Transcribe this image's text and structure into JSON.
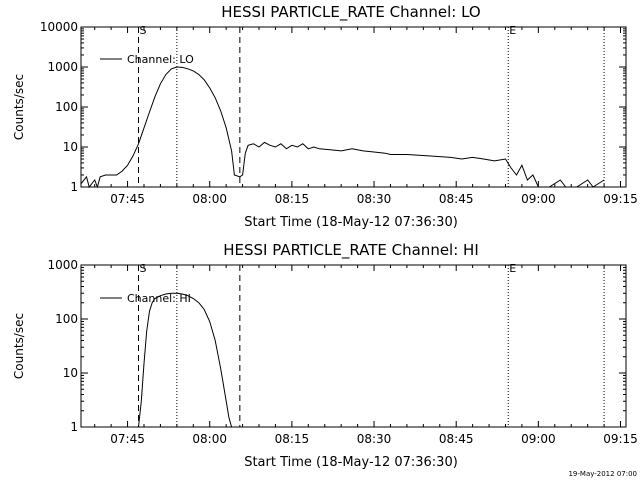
{
  "stamp": "19-May-2012 07:00",
  "chart_data": [
    {
      "type": "line",
      "title": "HESSI PARTICLE_RATE Channel: LO",
      "xlabel": "Start Time (18-May-12 07:36:30)",
      "ylabel": "Counts/sec",
      "yscale": "log",
      "ylim": [
        1,
        10000
      ],
      "xlim": [
        "07:36:30",
        "09:16:00"
      ],
      "xticks": [
        "07:45",
        "08:00",
        "08:15",
        "08:30",
        "08:45",
        "09:00",
        "09:15"
      ],
      "yticks": [
        "1",
        "10",
        "100",
        "1000",
        "10000"
      ],
      "legend": {
        "label": "Channel: LO",
        "placement": "top-left"
      },
      "markers": [
        {
          "label": "S",
          "time": "07:47:00",
          "style": "dashed"
        },
        {
          "label": "",
          "time": "07:54:00",
          "style": "dotted"
        },
        {
          "label": "",
          "time": "08:05:30",
          "style": "dashed"
        },
        {
          "label": "E",
          "time": "08:54:30",
          "style": "dotted"
        },
        {
          "label": "",
          "time": "09:12:00",
          "style": "dotted"
        }
      ],
      "series": [
        {
          "x": [
            "07:36:30",
            "07:37:30",
            "07:38:00",
            "07:39:00",
            "07:39:30",
            "07:40:00",
            "07:41:00",
            "07:42:00",
            "07:43:00",
            "07:44:00",
            "07:45:00",
            "07:46:00",
            "07:47:00",
            "07:48:00",
            "07:49:00",
            "07:50:00",
            "07:51:00",
            "07:52:00",
            "07:53:00",
            "07:54:00",
            "07:55:00",
            "07:56:00",
            "07:57:00",
            "07:58:00",
            "07:59:00",
            "08:00:00",
            "08:01:00",
            "08:02:00",
            "08:03:00",
            "08:04:00",
            "08:04:30",
            "08:05:30",
            "08:06:00",
            "08:06:30",
            "08:07:00",
            "08:08:00",
            "08:09:00",
            "08:10:00",
            "08:11:00",
            "08:12:00",
            "08:13:00",
            "08:14:00",
            "08:15:00",
            "08:16:00",
            "08:17:00",
            "08:18:00",
            "08:19:00",
            "08:20:00",
            "08:22:00",
            "08:24:00",
            "08:26:00",
            "08:28:00",
            "08:30:00",
            "08:32:00",
            "08:33:00",
            "08:36:00",
            "08:40:00",
            "08:44:00",
            "08:46:00",
            "08:48:00",
            "08:50:00",
            "08:52:00",
            "08:54:00",
            "08:55:00",
            "08:56:00",
            "08:57:00",
            "08:58:00",
            "08:59:00",
            "09:00:00",
            "09:02:00",
            "09:04:00",
            "09:05:00",
            "09:07:00",
            "09:09:00",
            "09:10:00",
            "09:12:00"
          ],
          "y": [
            1.2,
            1.8,
            1.0,
            1.5,
            1.0,
            1.8,
            2.0,
            2.0,
            2.0,
            2.5,
            3.5,
            6.0,
            12.0,
            30.0,
            75.0,
            180.0,
            380.0,
            650.0,
            900.0,
            1000.0,
            980.0,
            900.0,
            800.0,
            650.0,
            480.0,
            300.0,
            170.0,
            80.0,
            30.0,
            8.0,
            2.0,
            1.8,
            2.0,
            7.0,
            11.0,
            12.0,
            10.0,
            13.0,
            11.0,
            10.0,
            12.0,
            9.0,
            11.0,
            10.0,
            12.0,
            9.0,
            10.0,
            9.0,
            8.5,
            8.0,
            9.0,
            8.0,
            7.5,
            7.0,
            6.5,
            6.5,
            6.0,
            5.5,
            5.0,
            5.5,
            5.0,
            4.5,
            5.0,
            3.0,
            2.0,
            3.5,
            1.5,
            2.0,
            1.0,
            1.0,
            1.5,
            1.0,
            1.0,
            1.5,
            1.0,
            1.5
          ]
        }
      ]
    },
    {
      "type": "line",
      "title": "HESSI PARTICLE_RATE Channel: HI",
      "xlabel": "Start Time (18-May-12 07:36:30)",
      "ylabel": "Counts/sec",
      "yscale": "log",
      "ylim": [
        1,
        1000
      ],
      "xlim": [
        "07:36:30",
        "09:16:00"
      ],
      "xticks": [
        "07:45",
        "08:00",
        "08:15",
        "08:30",
        "08:45",
        "09:00",
        "09:15"
      ],
      "yticks": [
        "1",
        "10",
        "100",
        "1000"
      ],
      "legend": {
        "label": "Channel: HI",
        "placement": "top-left"
      },
      "markers": [
        {
          "label": "S",
          "time": "07:47:00",
          "style": "dashed"
        },
        {
          "label": "",
          "time": "07:54:00",
          "style": "dotted"
        },
        {
          "label": "",
          "time": "08:05:30",
          "style": "dashed"
        },
        {
          "label": "E",
          "time": "08:54:30",
          "style": "dotted"
        },
        {
          "label": "",
          "time": "09:12:00",
          "style": "dotted"
        }
      ],
      "series": [
        {
          "x": [
            "07:47:00",
            "07:47:30",
            "07:48:00",
            "07:48:30",
            "07:49:00",
            "07:49:30",
            "07:50:00",
            "07:51:00",
            "07:52:00",
            "07:53:00",
            "07:54:00",
            "07:55:00",
            "07:56:00",
            "07:57:00",
            "07:58:00",
            "07:59:00",
            "08:00:00",
            "08:01:00",
            "08:02:00",
            "08:03:00",
            "08:03:30",
            "08:04:00"
          ],
          "y": [
            1.0,
            3.0,
            15.0,
            60.0,
            140.0,
            200.0,
            240.0,
            270.0,
            290.0,
            300.0,
            300.0,
            290.0,
            270.0,
            240.0,
            200.0,
            150.0,
            90.0,
            40.0,
            12.0,
            3.0,
            1.5,
            1.0
          ]
        }
      ]
    }
  ]
}
